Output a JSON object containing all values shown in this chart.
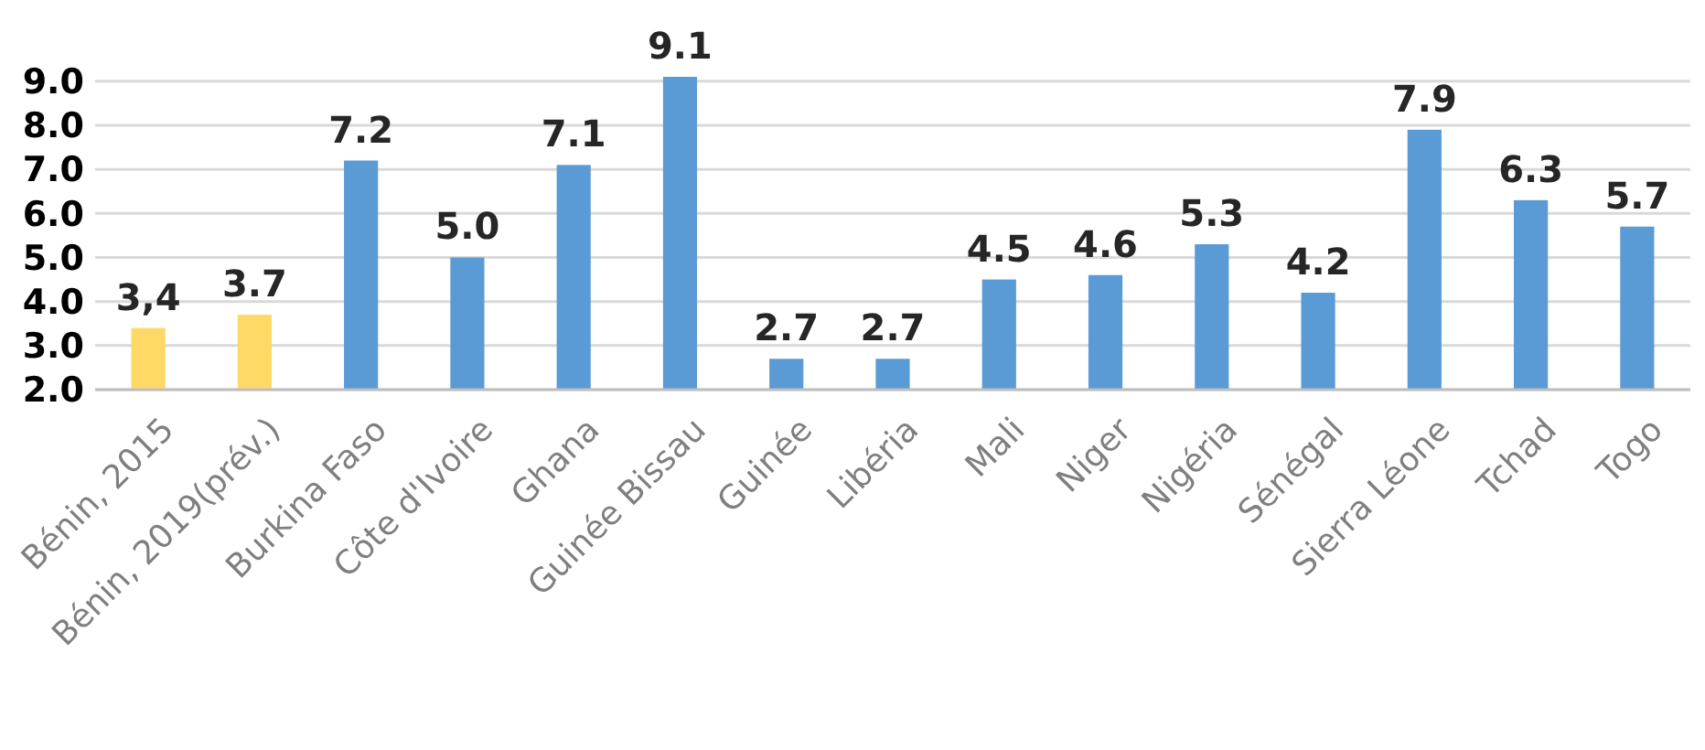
{
  "chart_data": {
    "type": "bar",
    "categories": [
      "Bénin, 2015",
      "Bénin, 2019(prév.)",
      "Burkina Faso",
      "Côte d'Ivoire",
      "Ghana",
      "Guinée Bissau",
      "Guinée",
      "Libéria",
      "Mali",
      "Niger",
      "Nigéria",
      "Sénégal",
      "Sierra Léone",
      "Tchad",
      "Togo"
    ],
    "values": [
      3.4,
      3.7,
      7.2,
      5.0,
      7.1,
      9.1,
      2.7,
      2.7,
      4.5,
      4.6,
      5.3,
      4.2,
      7.9,
      6.3,
      5.7
    ],
    "value_labels": [
      "3,4",
      "3.7",
      "7.2",
      "5.0",
      "7.1",
      "9.1",
      "2.7",
      "2.7",
      "4.5",
      "4.6",
      "5.3",
      "4.2",
      "7.9",
      "6.3",
      "5.7"
    ],
    "colors": [
      "#ffd966",
      "#ffd966",
      "#5b9bd5",
      "#5b9bd5",
      "#5b9bd5",
      "#5b9bd5",
      "#5b9bd5",
      "#5b9bd5",
      "#5b9bd5",
      "#5b9bd5",
      "#5b9bd5",
      "#5b9bd5",
      "#5b9bd5",
      "#5b9bd5",
      "#5b9bd5"
    ],
    "ylim": [
      2,
      9.1
    ],
    "yticks": [
      {
        "value": 2,
        "label": "2.0"
      },
      {
        "value": 3,
        "label": "3.0"
      },
      {
        "value": 4,
        "label": "4.0"
      },
      {
        "value": 5,
        "label": "5.0"
      },
      {
        "value": 6,
        "label": "6.0"
      },
      {
        "value": 7,
        "label": "7.0"
      },
      {
        "value": 8,
        "label": "8.0"
      },
      {
        "value": 9,
        "label": "9.0"
      }
    ],
    "grid": "y"
  }
}
